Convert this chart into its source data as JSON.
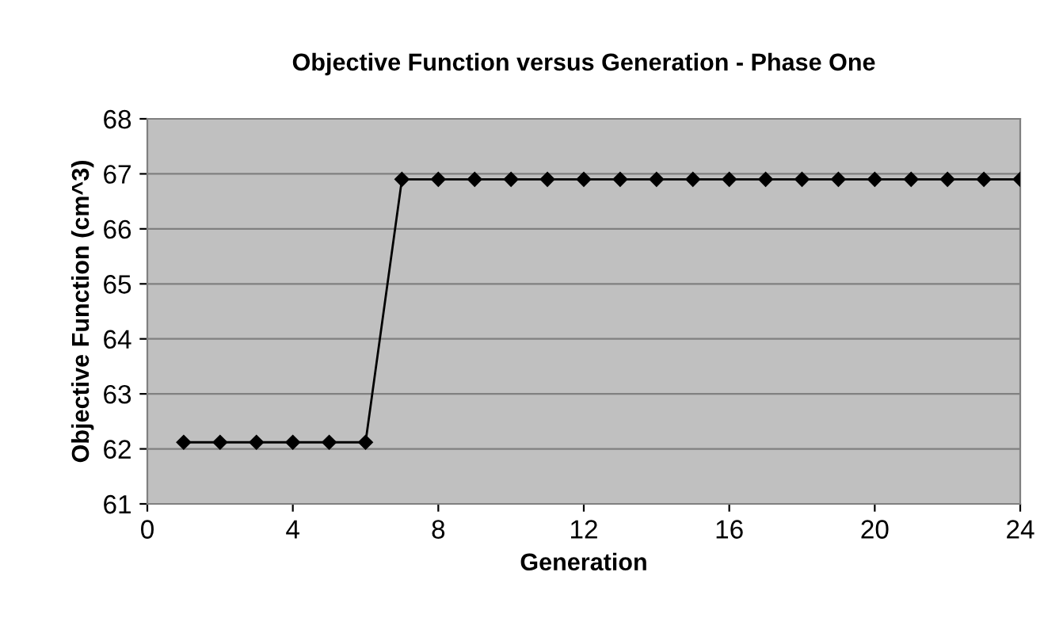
{
  "chart_data": {
    "type": "line",
    "title": "Objective Function versus Generation - Phase One",
    "xlabel": "Generation",
    "ylabel": "Objective Function (cm^3)",
    "x": [
      1,
      2,
      3,
      4,
      5,
      6,
      7,
      8,
      9,
      10,
      11,
      12,
      13,
      14,
      15,
      16,
      17,
      18,
      19,
      20,
      21,
      22,
      23,
      24
    ],
    "series": [
      {
        "color": "#000000",
        "values": [
          62.12,
          62.12,
          62.12,
          62.12,
          62.12,
          62.12,
          66.9,
          66.9,
          66.9,
          66.9,
          66.9,
          66.9,
          66.9,
          66.9,
          66.9,
          66.9,
          66.9,
          66.9,
          66.9,
          66.9,
          66.9,
          66.9,
          66.9,
          66.9
        ]
      }
    ],
    "xlim": [
      0,
      24
    ],
    "xticks": [
      0,
      4,
      8,
      12,
      16,
      20,
      24
    ],
    "ylim": [
      61,
      68
    ],
    "yticks": [
      61,
      62,
      63,
      64,
      65,
      66,
      67,
      68
    ],
    "grid": "y",
    "legend": false,
    "marker": "diamond",
    "line_style": "solid"
  }
}
